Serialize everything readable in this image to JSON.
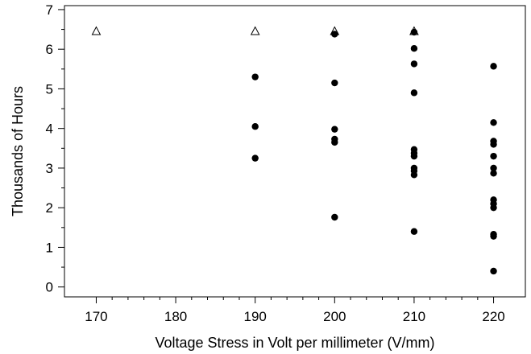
{
  "chart_data": {
    "type": "scatter",
    "xlabel": "Voltage Stress in Volt per millimeter (V/mm)",
    "ylabel": "Thousands of Hours",
    "xlim": [
      166,
      224
    ],
    "ylim": [
      -0.25,
      7.1
    ],
    "x_ticks": [
      "170",
      "180",
      "190",
      "200",
      "210",
      "220"
    ],
    "y_ticks": [
      "0",
      "1",
      "2",
      "3",
      "4",
      "5",
      "6",
      "7"
    ],
    "grid": false,
    "series": [
      {
        "marker": "filled-circle",
        "color": "#000000",
        "points": [
          {
            "x": 190,
            "y": 5.3
          },
          {
            "x": 190,
            "y": 4.05
          },
          {
            "x": 190,
            "y": 3.25
          },
          {
            "x": 200,
            "y": 6.38
          },
          {
            "x": 200,
            "y": 5.15
          },
          {
            "x": 200,
            "y": 3.98
          },
          {
            "x": 200,
            "y": 3.73
          },
          {
            "x": 200,
            "y": 3.65
          },
          {
            "x": 200,
            "y": 1.76
          },
          {
            "x": 210,
            "y": 6.43
          },
          {
            "x": 210,
            "y": 6.02
          },
          {
            "x": 210,
            "y": 5.63
          },
          {
            "x": 210,
            "y": 4.9
          },
          {
            "x": 210,
            "y": 3.47
          },
          {
            "x": 210,
            "y": 3.38
          },
          {
            "x": 210,
            "y": 3.3
          },
          {
            "x": 210,
            "y": 3.0
          },
          {
            "x": 210,
            "y": 2.93
          },
          {
            "x": 210,
            "y": 2.83
          },
          {
            "x": 210,
            "y": 1.4
          },
          {
            "x": 220,
            "y": 5.57
          },
          {
            "x": 220,
            "y": 4.15
          },
          {
            "x": 220,
            "y": 3.68
          },
          {
            "x": 220,
            "y": 3.6
          },
          {
            "x": 220,
            "y": 3.3
          },
          {
            "x": 220,
            "y": 3.0
          },
          {
            "x": 220,
            "y": 2.87
          },
          {
            "x": 220,
            "y": 2.2
          },
          {
            "x": 220,
            "y": 2.1
          },
          {
            "x": 220,
            "y": 2.0
          },
          {
            "x": 220,
            "y": 1.33
          },
          {
            "x": 220,
            "y": 1.28
          },
          {
            "x": 220,
            "y": 0.4
          }
        ]
      },
      {
        "marker": "open-triangle",
        "color": "#000000",
        "points": [
          {
            "x": 170,
            "y": 6.45
          },
          {
            "x": 190,
            "y": 6.45
          },
          {
            "x": 200,
            "y": 6.45
          },
          {
            "x": 210,
            "y": 6.45
          }
        ]
      }
    ]
  }
}
